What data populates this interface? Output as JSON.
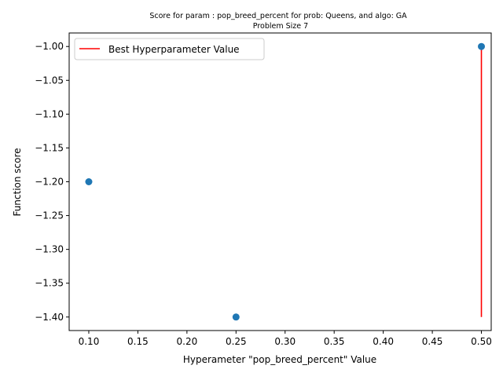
{
  "chart_data": {
    "type": "scatter",
    "title_line1": "Score for param : pop_breed_percent for prob: Queens, and algo: GA",
    "title_line2": "Problem Size 7",
    "xlabel": "Hyperameter \"pop_breed_percent\" Value",
    "ylabel": "Function score",
    "xlim": [
      0.08,
      0.51
    ],
    "ylim": [
      -1.42,
      -0.98
    ],
    "x_ticks": [
      0.1,
      0.15,
      0.2,
      0.25,
      0.3,
      0.35,
      0.4,
      0.45,
      0.5
    ],
    "x_tick_labels": [
      "0.10",
      "0.15",
      "0.20",
      "0.25",
      "0.30",
      "0.35",
      "0.40",
      "0.45",
      "0.50"
    ],
    "y_ticks": [
      -1.0,
      -1.05,
      -1.1,
      -1.15,
      -1.2,
      -1.25,
      -1.3,
      -1.35,
      -1.4
    ],
    "y_tick_labels": [
      "−1.00",
      "−1.05",
      "−1.10",
      "−1.15",
      "−1.20",
      "−1.25",
      "−1.30",
      "−1.35",
      "−1.40"
    ],
    "grid": false,
    "legend_position": "top-left",
    "series": [
      {
        "type": "scatter",
        "color": "#1f77b4",
        "points": [
          {
            "x": 0.1,
            "y": -1.2
          },
          {
            "x": 0.25,
            "y": -1.4
          },
          {
            "x": 0.5,
            "y": -1.0
          }
        ]
      },
      {
        "type": "vline",
        "name": "Best Hyperparameter Value",
        "color": "#ff0000",
        "x": 0.5,
        "y_from": -1.4,
        "y_to": -1.0
      }
    ]
  }
}
